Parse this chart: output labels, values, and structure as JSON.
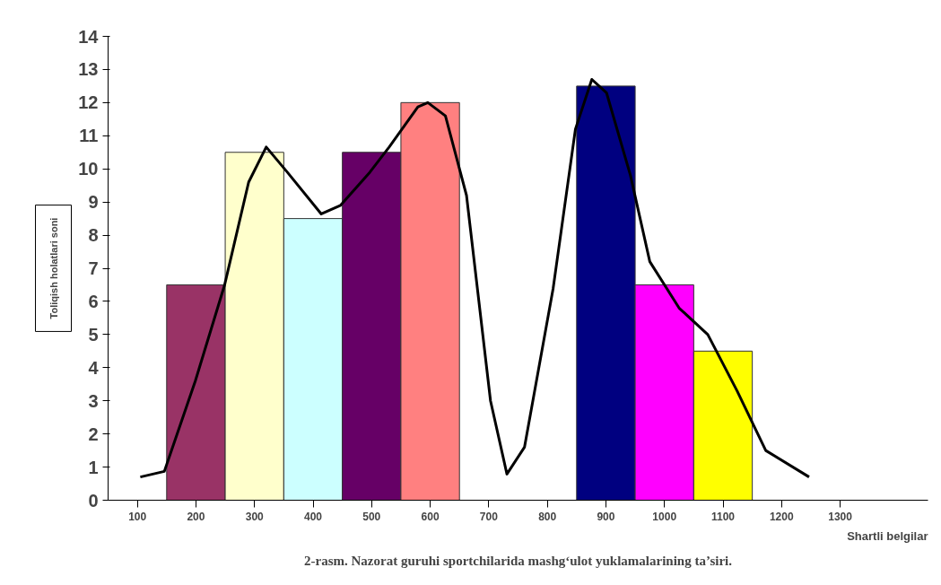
{
  "chart_data": {
    "type": "bar",
    "title": "2-rasm. Nazorat guruhi sportchilarida mashg‘ulot yuklamalarining ta’siri.",
    "xlabel": "Shartli belgilar",
    "ylabel": "Toliqish holatlari soni",
    "series": [
      {
        "x": [
          200,
          300,
          400,
          500,
          600,
          900,
          1000,
          1100
        ],
        "values": [
          6.5,
          10.5,
          8.5,
          10.5,
          12,
          12.5,
          6.5,
          4.5
        ],
        "colors": [
          "#993366",
          "#ffffcc",
          "#ccffff",
          "#660066",
          "#ff8080",
          "#000080",
          "#ff00ff",
          "#ffff00"
        ]
      },
      {
        "type": "line",
        "color": "#000000",
        "x": [
          105,
          146,
          199,
          249,
          290,
          320,
          356,
          414,
          447,
          497,
          530,
          579,
          596,
          626,
          662,
          703,
          731,
          761,
          810,
          848,
          876,
          901,
          942,
          975,
          1025,
          1074,
          1124,
          1173,
          1247
        ],
        "values": [
          0.7,
          0.87,
          3.6,
          6.5,
          9.6,
          10.66,
          9.9,
          8.64,
          8.9,
          9.9,
          10.66,
          11.87,
          12.0,
          11.6,
          9.2,
          3.0,
          0.79,
          1.6,
          6.4,
          11.2,
          12.7,
          12.3,
          9.8,
          7.2,
          5.8,
          5.0,
          3.3,
          1.5,
          0.7
        ]
      }
    ],
    "xlim": [
      50,
      1450
    ],
    "xticks": [
      100,
      200,
      300,
      400,
      500,
      600,
      700,
      800,
      900,
      1000,
      1100,
      1200,
      1300
    ],
    "ylim": [
      0,
      14
    ],
    "yticks": [
      0,
      1,
      2,
      3,
      4,
      5,
      6,
      7,
      8,
      9,
      10,
      11,
      12,
      13,
      14
    ],
    "grid": false
  }
}
